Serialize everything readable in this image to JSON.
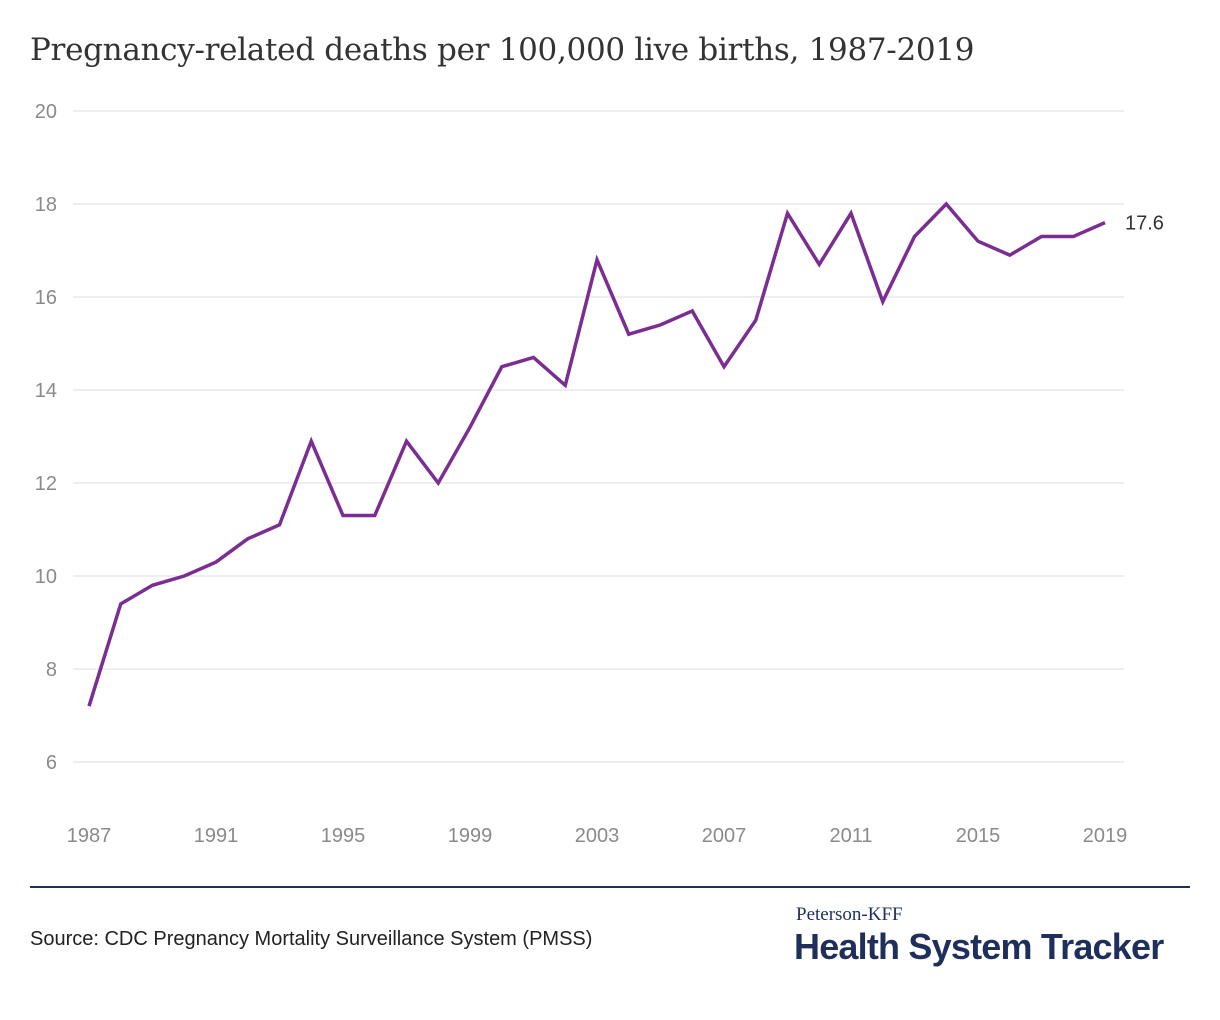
{
  "chart_data": {
    "type": "line",
    "title": "Pregnancy-related deaths per 100,000 live births, 1987-2019",
    "xlabel": "",
    "ylabel": "",
    "ylim": [
      5,
      20
    ],
    "yticks": [
      "6",
      "8",
      "10",
      "12",
      "14",
      "16",
      "18",
      "20"
    ],
    "xticks": [
      "1987",
      "1991",
      "1995",
      "1999",
      "2003",
      "2007",
      "2011",
      "2015",
      "2019"
    ],
    "x": [
      1987,
      1988,
      1989,
      1990,
      1991,
      1992,
      1993,
      1994,
      1995,
      1996,
      1997,
      1998,
      1999,
      2000,
      2001,
      2002,
      2003,
      2004,
      2005,
      2006,
      2007,
      2008,
      2009,
      2010,
      2011,
      2012,
      2013,
      2014,
      2015,
      2016,
      2017,
      2018,
      2019
    ],
    "series": [
      {
        "name": "",
        "color": "#7b2d91",
        "values": [
          7.2,
          9.4,
          9.8,
          10.0,
          10.3,
          10.8,
          11.1,
          12.9,
          11.3,
          11.3,
          12.9,
          12.0,
          13.2,
          14.5,
          14.7,
          14.1,
          16.8,
          15.2,
          15.4,
          15.7,
          14.5,
          15.5,
          17.8,
          16.7,
          17.8,
          15.9,
          17.3,
          18.0,
          17.2,
          16.9,
          17.3,
          17.3,
          17.6
        ]
      }
    ],
    "end_label": "17.6",
    "grid": true,
    "legend": "none"
  },
  "footer": {
    "source": "Source: CDC Pregnancy Mortality Surveillance System (PMSS)",
    "brand_small": "Peterson-KFF",
    "brand_big": "Health System Tracker"
  },
  "colors": {
    "line": "#7b2d91",
    "grid": "#dddddd",
    "brand": "#1f2f5c"
  }
}
